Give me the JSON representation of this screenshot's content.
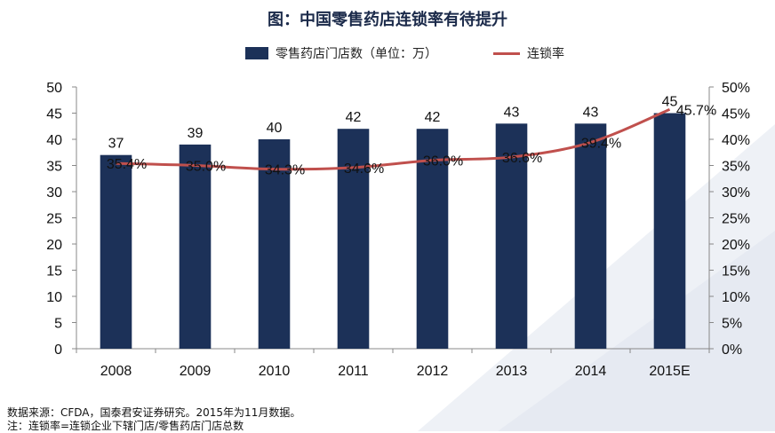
{
  "title": "图：中国零售药店连锁率有待提升",
  "legend": {
    "bar_label": "零售药店门店数（单位：万）",
    "line_label": "连锁率"
  },
  "colors": {
    "bar": "#1c3158",
    "line": "#c0504d",
    "bg_shape": "#eef1f6"
  },
  "notes": {
    "source": "数据来源：CFDA，国泰君安证券研究。2015年为11月数据。",
    "footnote": "注：连锁率=连锁企业下辖门店/零售药店门店总数"
  },
  "chart_data": {
    "type": "bar",
    "categories": [
      "2008",
      "2009",
      "2010",
      "2011",
      "2012",
      "2013",
      "2014",
      "2015E"
    ],
    "series": [
      {
        "name": "零售药店门店数（单位：万）",
        "type": "bar",
        "axis": "left",
        "values": [
          37,
          39,
          40,
          42,
          42,
          43,
          43,
          45
        ],
        "labels": [
          "37",
          "39",
          "40",
          "42",
          "42",
          "43",
          "43",
          "45"
        ]
      },
      {
        "name": "连锁率",
        "type": "line",
        "axis": "right",
        "values": [
          35.4,
          35.0,
          34.3,
          34.6,
          36.0,
          36.6,
          39.4,
          45.7
        ],
        "labels": [
          "35.4%",
          "35.0%",
          "34.3%",
          "34.6%",
          "36.0%",
          "36.6%",
          "39.4%",
          "45.7%"
        ]
      }
    ],
    "ylim_left": [
      0,
      50
    ],
    "yticks_left": [
      "0",
      "5",
      "10",
      "15",
      "20",
      "25",
      "30",
      "35",
      "40",
      "45",
      "50"
    ],
    "ylim_right": [
      0,
      50
    ],
    "yticks_right": [
      "0%",
      "5%",
      "10%",
      "15%",
      "20%",
      "25%",
      "30%",
      "35%",
      "40%",
      "45%",
      "50%"
    ],
    "grid": false,
    "legend_position": "top"
  }
}
